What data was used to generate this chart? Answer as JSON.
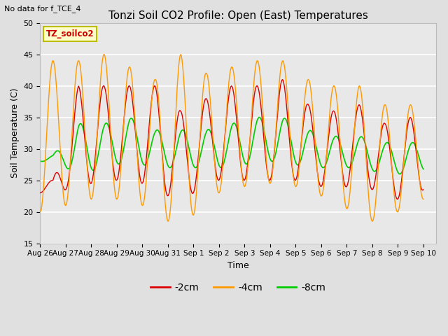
{
  "title": "Tonzi Soil CO2 Profile: Open (East) Temperatures",
  "subtitle": "No data for f_TCE_4",
  "ylabel": "Soil Temperature (C)",
  "xlabel": "Time",
  "ylim": [
    15,
    50
  ],
  "fig_bg_color": "#e0e0e0",
  "plot_bg_color": "#e8e8e8",
  "legend_label": "TZ_soilco2",
  "legend_box_color": "#ffffcc",
  "legend_box_edge": "#bbbb00",
  "line_colors": {
    "-2cm": "#dd0000",
    "-4cm": "#ff9900",
    "-8cm": "#00cc00"
  },
  "xtick_labels": [
    "Aug 26",
    "Aug 27",
    "Aug 28",
    "Aug 29",
    "Aug 30",
    "Aug 31",
    "Sep 1",
    "Sep 2",
    "Sep 3",
    "Sep 4",
    "Sep 5",
    "Sep 6",
    "Sep 7",
    "Sep 8",
    "Sep 9",
    "Sep 10"
  ],
  "grid_color": "#ffffff",
  "font_size": 9,
  "title_font_size": 11
}
